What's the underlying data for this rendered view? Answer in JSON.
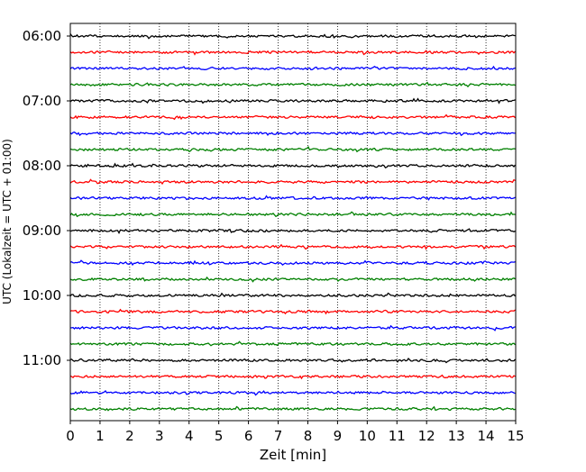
{
  "chart_data": {
    "type": "line",
    "title": "",
    "xlabel": "Zeit  [min]",
    "ylabel": "UTC (Lokalzeit = UTC + 01:00)",
    "xlim": [
      0,
      15
    ],
    "x_ticks": [
      "0",
      "1",
      "2",
      "3",
      "4",
      "5",
      "6",
      "7",
      "8",
      "9",
      "10",
      "11",
      "12",
      "13",
      "14",
      "15"
    ],
    "y_tick_labels": [
      "06:00",
      "07:00",
      "08:00",
      "09:00",
      "10:00",
      "11:00"
    ],
    "grid": "vertical dotted lines at each minute",
    "trace_colors": [
      "#000000",
      "#ff0000",
      "#0000ff",
      "#008000"
    ],
    "traces_per_hour": 4,
    "trace_count": 24
  }
}
